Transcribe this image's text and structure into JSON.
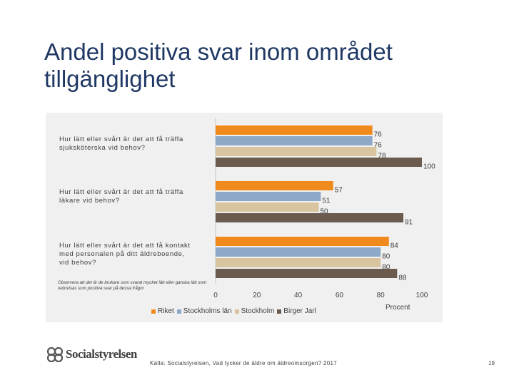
{
  "slide": {
    "title": "Andel positiva svar inom området tillgänglighet",
    "note": "Observera att det är de brukare som svarat mycket lätt eller ganska lätt som redovisas som positiva svar på dessa frågor",
    "source": "Källa: Socialstyrelsen, Vad tycker de äldre om äldreomsorgen? 2017",
    "page_number": "19",
    "logo_text": "Socialstyrelsen"
  },
  "chart_data": {
    "type": "bar",
    "orientation": "horizontal",
    "categories": [
      "Hur lätt eller svårt är det att få träffa sjuksköterska vid behov?",
      "Hur lätt eller svårt är det att få träffa läkare vid behov?",
      "Hur lätt eller svårt är det att få kontakt med personalen på ditt äldreboende, vid behov?"
    ],
    "series": [
      {
        "name": "Riket",
        "color": "#f08a1c",
        "values": [
          76,
          57,
          84
        ]
      },
      {
        "name": "Stockholms län",
        "color": "#8ea9c8",
        "values": [
          76,
          51,
          80
        ]
      },
      {
        "name": "Stockholm",
        "color": "#d9c4a0",
        "values": [
          78,
          50,
          80
        ]
      },
      {
        "name": "Birger Jarl",
        "color": "#6b5a4e",
        "values": [
          100,
          91,
          88
        ]
      }
    ],
    "xlim": [
      0,
      100
    ],
    "xticks": [
      "0",
      "20",
      "40",
      "60",
      "80",
      "100"
    ],
    "xlabel": "Procent",
    "legend_position": "bottom"
  }
}
